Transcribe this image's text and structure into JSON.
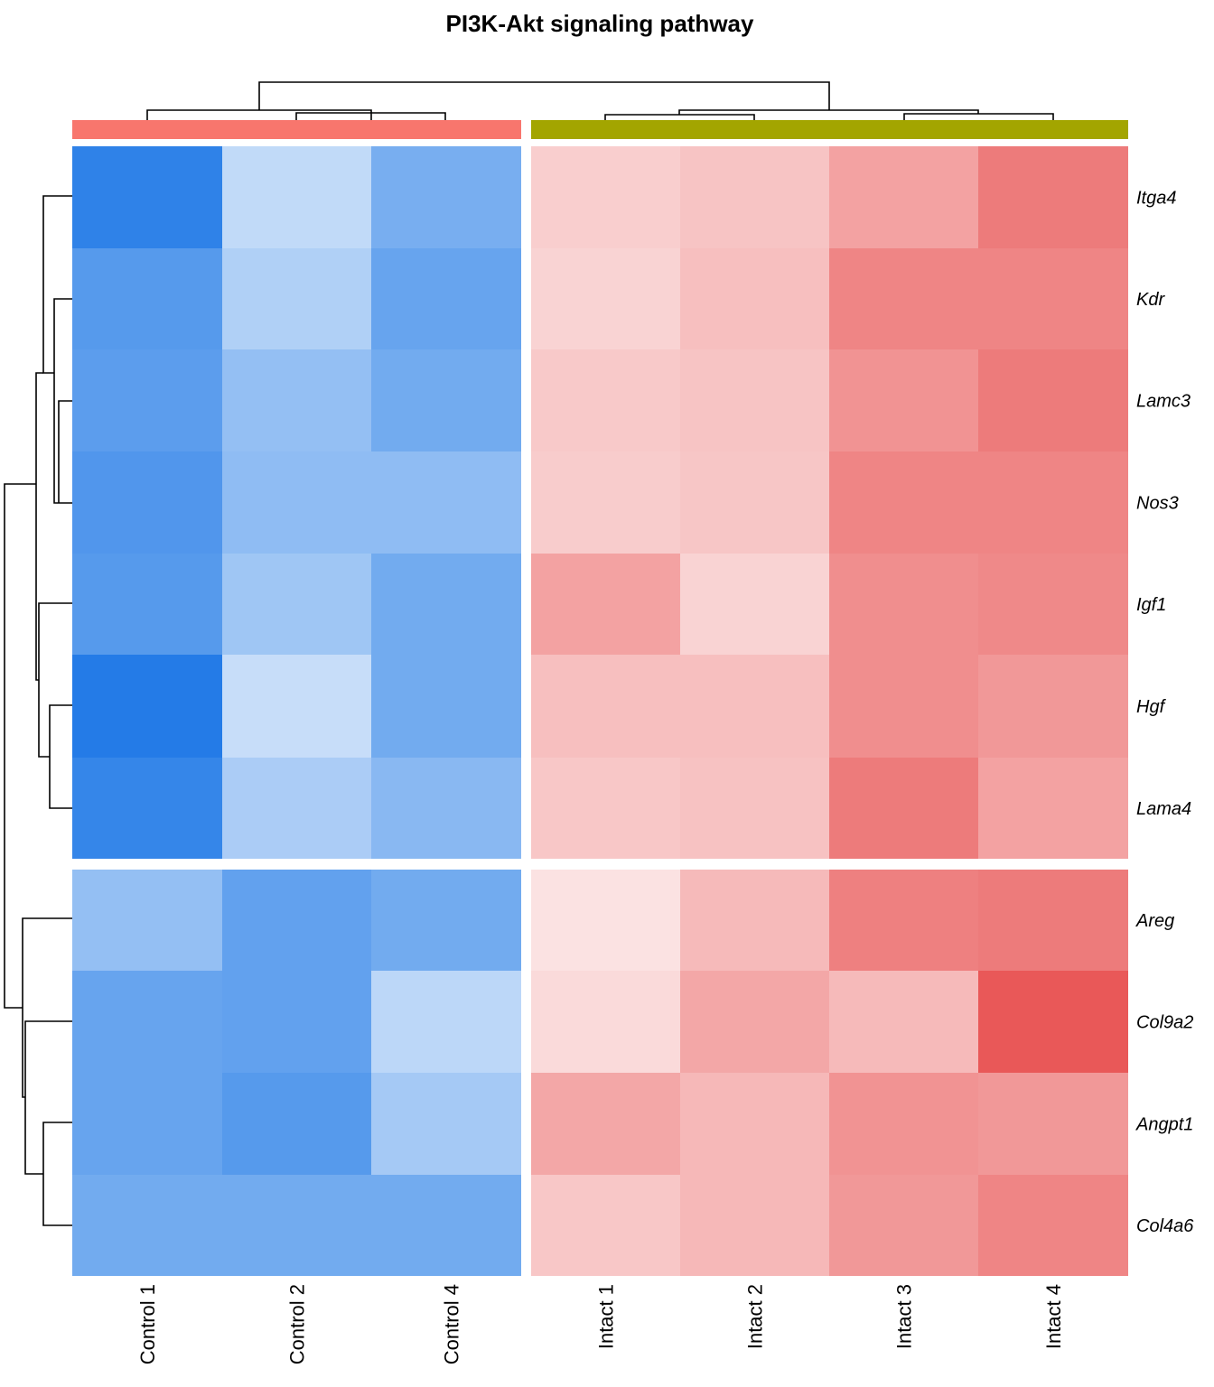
{
  "chart_data": {
    "type": "heatmap",
    "title": "PI3K-Akt signaling pathway",
    "columns": [
      "Control 1",
      "Control 2",
      "Control 4",
      "Intact 1",
      "Intact 2",
      "Intact 3",
      "Intact 4"
    ],
    "column_groups": [
      {
        "name": "Control",
        "color": "#F8766D",
        "columns": [
          "Control 1",
          "Control 2",
          "Control 4"
        ]
      },
      {
        "name": "Intact",
        "color": "#A3A500",
        "columns": [
          "Intact 1",
          "Intact 2",
          "Intact 3",
          "Intact 4"
        ]
      }
    ],
    "rows": [
      "Itga4",
      "Kdr",
      "Lamc3",
      "Nos3",
      "Igf1",
      "Hgf",
      "Lama4",
      "Areg",
      "Col9a2",
      "Angpt1",
      "Col4a6"
    ],
    "row_split_after": "Lama4",
    "values": [
      [
        -1.85,
        -0.55,
        -1.2,
        0.5,
        0.6,
        0.95,
        1.35
      ],
      [
        -1.5,
        -0.7,
        -1.35,
        0.45,
        0.65,
        1.25,
        1.25
      ],
      [
        -1.45,
        -0.95,
        -1.25,
        0.55,
        0.6,
        1.1,
        1.35
      ],
      [
        -1.55,
        -1.0,
        -1.0,
        0.52,
        0.58,
        1.25,
        1.25
      ],
      [
        -1.5,
        -0.85,
        -1.25,
        0.95,
        0.45,
        1.15,
        1.2
      ],
      [
        -1.95,
        -0.5,
        -1.25,
        0.65,
        0.65,
        1.15,
        1.05
      ],
      [
        -1.8,
        -0.75,
        -1.05,
        0.57,
        0.62,
        1.35,
        0.95
      ],
      [
        -0.95,
        -1.4,
        -1.25,
        0.3,
        0.7,
        1.3,
        1.35
      ],
      [
        -1.35,
        -1.4,
        -0.6,
        0.38,
        0.9,
        0.7,
        1.7
      ],
      [
        -1.35,
        -1.5,
        -0.8,
        0.9,
        0.72,
        1.1,
        1.05
      ],
      [
        -1.25,
        -1.25,
        -1.25,
        0.57,
        0.72,
        1.05,
        1.25
      ]
    ],
    "color_scale": {
      "low": "#1E78E6",
      "mid": "#FFFFFF",
      "high": "#E53B3B",
      "limits": [
        -2.0,
        2.0
      ]
    },
    "legend": "none"
  }
}
